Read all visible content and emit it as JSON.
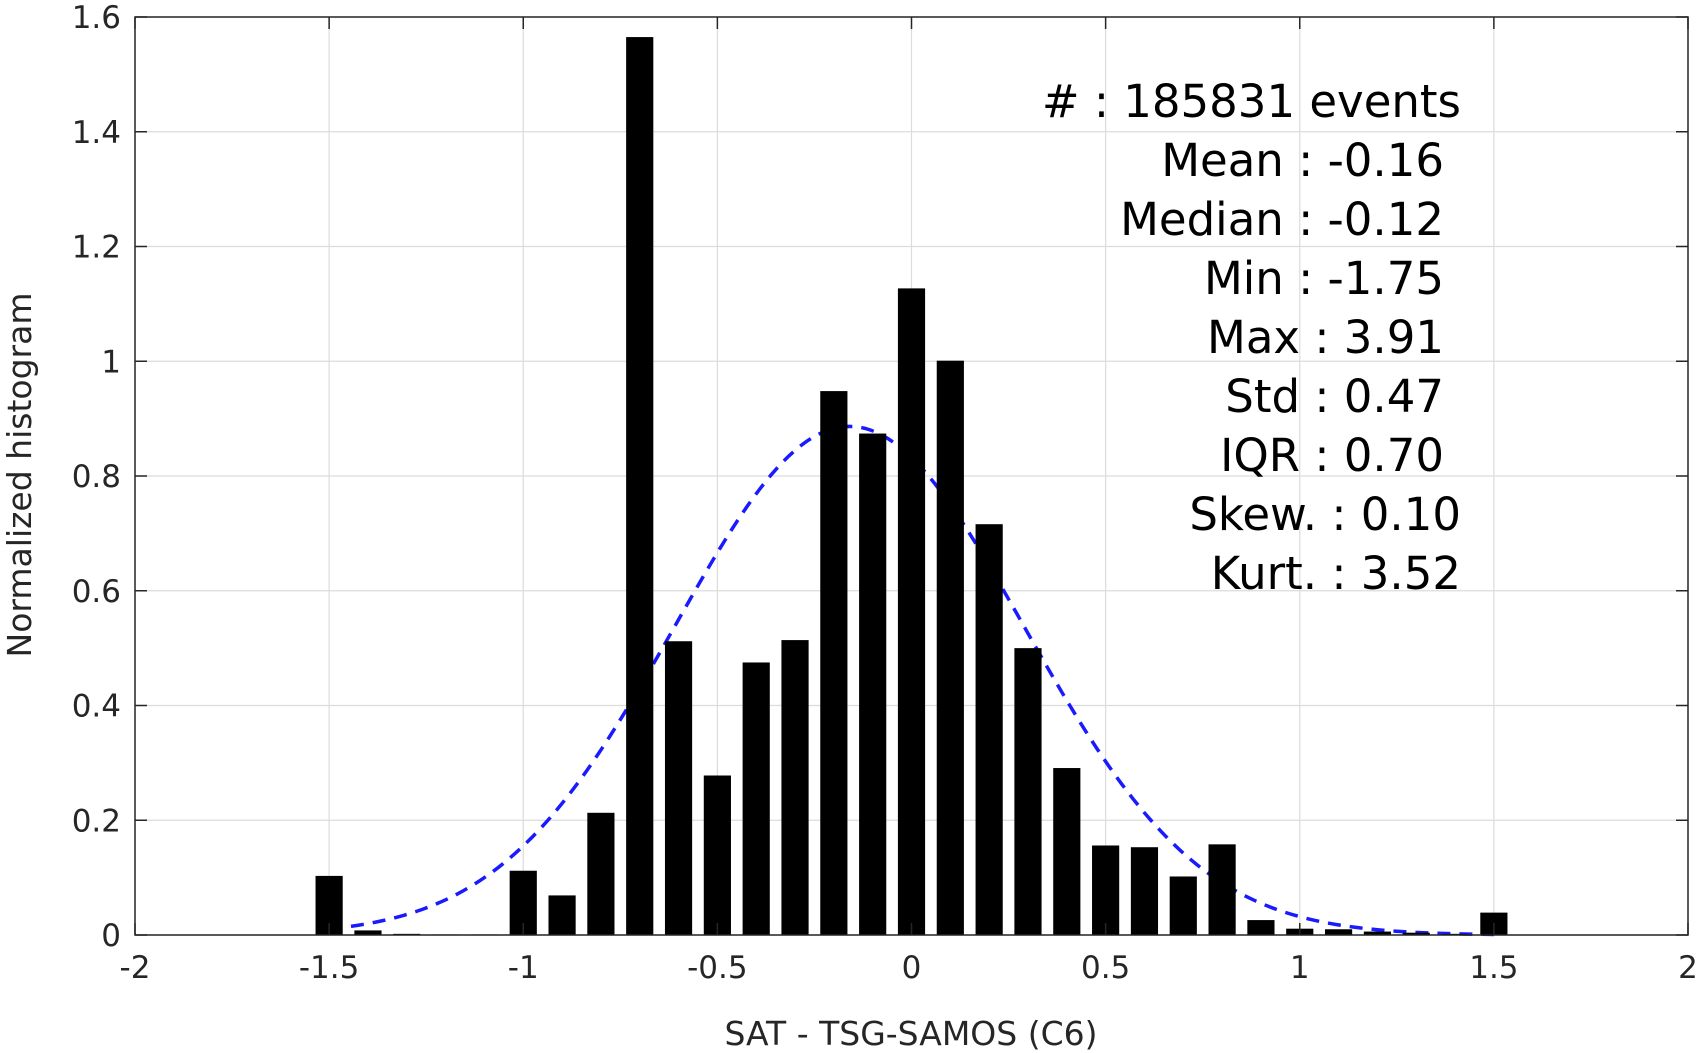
{
  "chart_data": {
    "type": "bar",
    "title": "",
    "xlabel": "SAT - TSG-SAMOS (C6)",
    "ylabel": "Normalized histogram",
    "xlim": [
      -2,
      2
    ],
    "ylim": [
      0,
      1.6
    ],
    "grid": true,
    "x_ticks": [
      "-2",
      "-1.5",
      "-1",
      "-0.5",
      "0",
      "0.5",
      "1",
      "1.5",
      "2"
    ],
    "y_ticks": [
      "0",
      "0.2",
      "0.4",
      "0.6",
      "0.8",
      "1",
      "1.2",
      "1.4",
      "1.6"
    ],
    "bin_width": 0.1,
    "bar_fraction": 0.7,
    "x": [
      -1.5,
      -1.4,
      -1.3,
      -1.2,
      -1.1,
      -1.0,
      -0.9,
      -0.8,
      -0.7,
      -0.6,
      -0.5,
      -0.4,
      -0.3,
      -0.2,
      -0.1,
      0.0,
      0.1,
      0.2,
      0.3,
      0.4,
      0.5,
      0.6,
      0.7,
      0.8,
      0.9,
      1.0,
      1.1,
      1.2,
      1.3,
      1.4,
      1.5
    ],
    "values": [
      0.103,
      0.008,
      0.002,
      0.001,
      0.001,
      0.112,
      0.069,
      0.213,
      1.565,
      0.512,
      0.278,
      0.475,
      0.514,
      0.948,
      0.874,
      1.127,
      1.001,
      0.716,
      0.5,
      0.291,
      0.156,
      0.153,
      0.102,
      0.158,
      0.026,
      0.011,
      0.01,
      0.006,
      0.004,
      0.002,
      0.039
    ],
    "fit": {
      "type": "normal",
      "mean": -0.16,
      "std": 0.45,
      "x_range": [
        -1.5,
        1.5
      ],
      "color": "#1a1aff",
      "style": "dashed"
    },
    "bar_color": "#000000",
    "stats": {
      "lines": [
        {
          "label": "#  ",
          "sep": ": ",
          "value": "185831 events"
        },
        {
          "label": "Mean ",
          "sep": ": ",
          "value": "-0.16"
        },
        {
          "label": "Median ",
          "sep": ": ",
          "value": "-0.12"
        },
        {
          "label": "Min ",
          "sep": ": ",
          "value": "-1.75"
        },
        {
          "label": "Max ",
          "sep": ": ",
          "value": "3.91"
        },
        {
          "label": "Std ",
          "sep": ": ",
          "value": "0.47"
        },
        {
          "label": "IQR ",
          "sep": ": ",
          "value": "0.70"
        },
        {
          "label": "Skew. ",
          "sep": ": ",
          "value": "0.10"
        },
        {
          "label": "Kurt. ",
          "sep": ": ",
          "value": "3.52"
        }
      ],
      "placement": "top-right"
    }
  }
}
